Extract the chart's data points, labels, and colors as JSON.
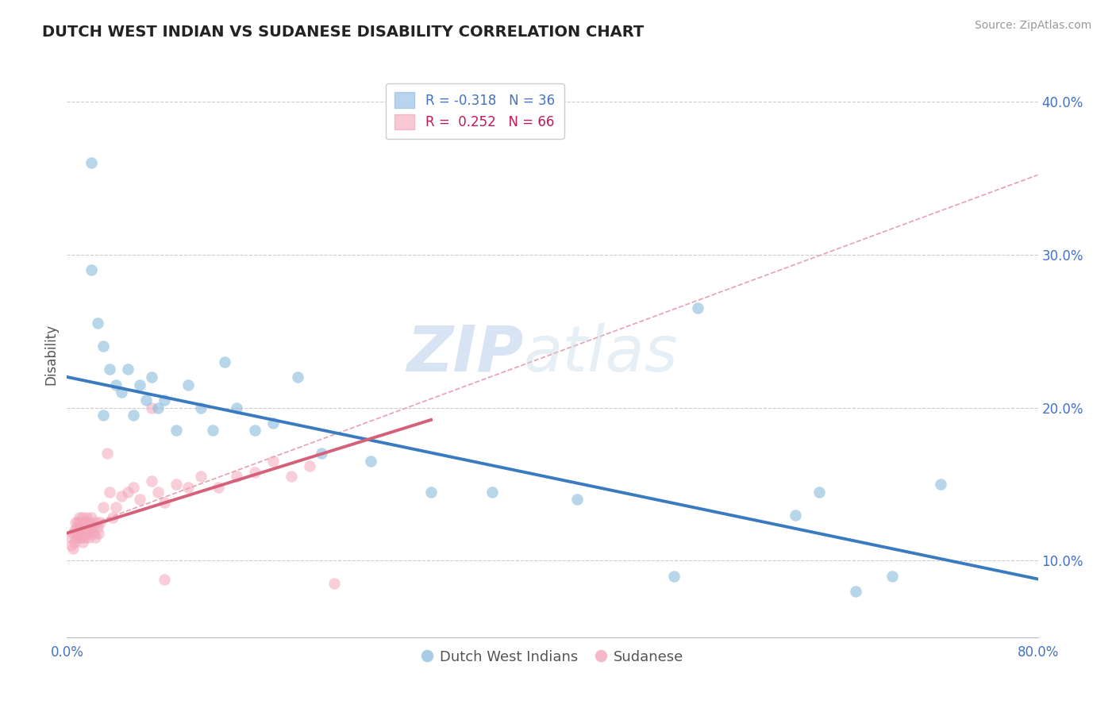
{
  "title": "DUTCH WEST INDIAN VS SUDANESE DISABILITY CORRELATION CHART",
  "source": "Source: ZipAtlas.com",
  "ylabel": "Disability",
  "xlim": [
    0.0,
    0.8
  ],
  "ylim": [
    0.05,
    0.42
  ],
  "xticks": [
    0.0,
    0.1,
    0.2,
    0.3,
    0.4,
    0.5,
    0.6,
    0.7,
    0.8
  ],
  "xticklabels": [
    "0.0%",
    "",
    "",
    "",
    "",
    "",
    "",
    "",
    "80.0%"
  ],
  "yticks_right": [
    0.1,
    0.2,
    0.3,
    0.4
  ],
  "yticklabels_right": [
    "10.0%",
    "20.0%",
    "30.0%",
    "40.0%"
  ],
  "blue_R": "-0.318",
  "blue_N": "36",
  "pink_R": "0.252",
  "pink_N": "66",
  "legend_labels": [
    "Dutch West Indians",
    "Sudanese"
  ],
  "blue_color": "#92c0e0",
  "pink_color": "#f4a6bb",
  "blue_line_color": "#3a7bbf",
  "pink_line_color": "#d4607a",
  "dashed_line_color": "#e8a0b0",
  "watermark_zip": "ZIP",
  "watermark_atlas": "atlas",
  "background_color": "#ffffff",
  "grid_color": "#cccccc",
  "blue_scatter_x": [
    0.02,
    0.025,
    0.03,
    0.035,
    0.04,
    0.045,
    0.05,
    0.055,
    0.06,
    0.065,
    0.07,
    0.075,
    0.08,
    0.09,
    0.1,
    0.11,
    0.12,
    0.13,
    0.14,
    0.155,
    0.17,
    0.19,
    0.21,
    0.25,
    0.3,
    0.35,
    0.42,
    0.5,
    0.52,
    0.6,
    0.62,
    0.65,
    0.68,
    0.72,
    0.02,
    0.03
  ],
  "blue_scatter_y": [
    0.29,
    0.255,
    0.24,
    0.225,
    0.215,
    0.21,
    0.225,
    0.195,
    0.215,
    0.205,
    0.22,
    0.2,
    0.205,
    0.185,
    0.215,
    0.2,
    0.185,
    0.23,
    0.2,
    0.185,
    0.19,
    0.22,
    0.17,
    0.165,
    0.145,
    0.145,
    0.14,
    0.09,
    0.265,
    0.13,
    0.145,
    0.08,
    0.09,
    0.15,
    0.36,
    0.195
  ],
  "pink_scatter_x": [
    0.003,
    0.004,
    0.005,
    0.005,
    0.006,
    0.006,
    0.007,
    0.007,
    0.008,
    0.008,
    0.009,
    0.009,
    0.01,
    0.01,
    0.01,
    0.011,
    0.011,
    0.012,
    0.012,
    0.013,
    0.013,
    0.013,
    0.014,
    0.014,
    0.015,
    0.015,
    0.016,
    0.016,
    0.017,
    0.017,
    0.018,
    0.018,
    0.019,
    0.02,
    0.02,
    0.021,
    0.022,
    0.023,
    0.024,
    0.025,
    0.026,
    0.027,
    0.03,
    0.033,
    0.035,
    0.038,
    0.04,
    0.045,
    0.05,
    0.055,
    0.06,
    0.07,
    0.075,
    0.08,
    0.09,
    0.1,
    0.11,
    0.125,
    0.14,
    0.155,
    0.17,
    0.185,
    0.2,
    0.22,
    0.07,
    0.08
  ],
  "pink_scatter_y": [
    0.115,
    0.11,
    0.118,
    0.108,
    0.12,
    0.112,
    0.125,
    0.118,
    0.122,
    0.115,
    0.125,
    0.118,
    0.128,
    0.122,
    0.115,
    0.125,
    0.118,
    0.122,
    0.115,
    0.128,
    0.12,
    0.112,
    0.125,
    0.118,
    0.122,
    0.115,
    0.128,
    0.12,
    0.125,
    0.118,
    0.122,
    0.115,
    0.125,
    0.128,
    0.12,
    0.122,
    0.118,
    0.115,
    0.125,
    0.122,
    0.118,
    0.125,
    0.135,
    0.17,
    0.145,
    0.128,
    0.135,
    0.142,
    0.145,
    0.148,
    0.14,
    0.152,
    0.145,
    0.138,
    0.15,
    0.148,
    0.155,
    0.148,
    0.155,
    0.158,
    0.165,
    0.155,
    0.162,
    0.085,
    0.2,
    0.088
  ],
  "blue_trend_x": [
    0.0,
    0.8
  ],
  "blue_trend_y": [
    0.22,
    0.088
  ],
  "pink_trend_x": [
    0.0,
    0.3
  ],
  "pink_trend_y": [
    0.118,
    0.192
  ],
  "dashed_trend_x": [
    0.0,
    0.8
  ],
  "dashed_trend_y": [
    0.118,
    0.352
  ]
}
